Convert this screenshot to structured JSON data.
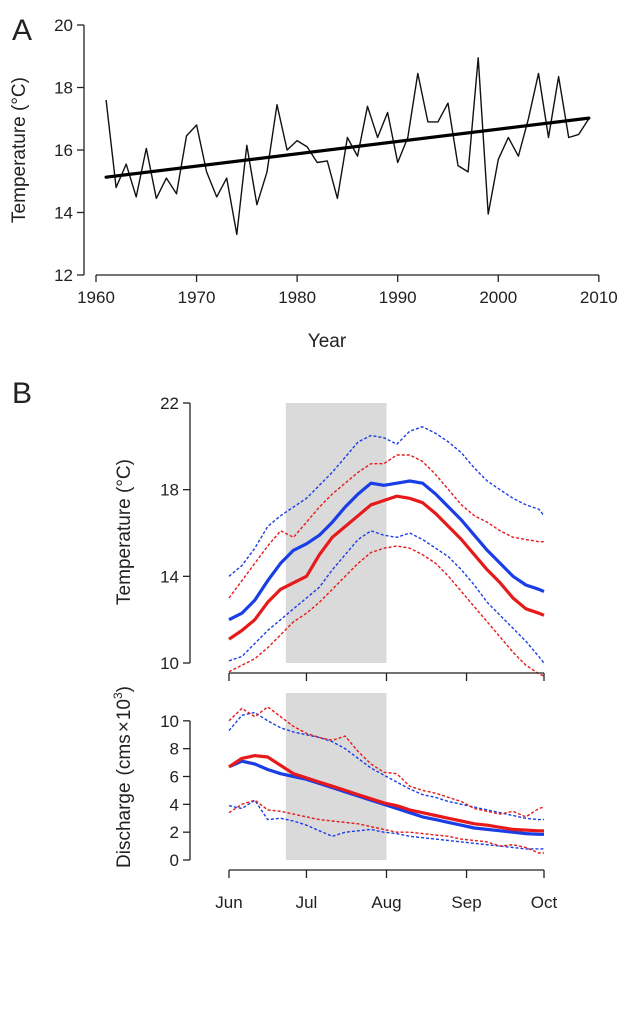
{
  "chart_data": [
    {
      "panel": "A",
      "type": "line",
      "xlabel": "Year",
      "ylabel": "Temperature (°C)",
      "xlim": [
        1960,
        2013
      ],
      "ylim": [
        12,
        20
      ],
      "xticks": [
        1960,
        1970,
        1980,
        1990,
        2000,
        2010
      ],
      "yticks": [
        12,
        14,
        16,
        18,
        20
      ],
      "grid": false,
      "series": [
        {
          "style": "thin black line",
          "color": "#111111",
          "x": [
            1961,
            1962,
            1963,
            1964,
            1965,
            1966,
            1967,
            1968,
            1969,
            1970,
            1971,
            1972,
            1973,
            1974,
            1975,
            1976,
            1977,
            1978,
            1979,
            1980,
            1981,
            1982,
            1983,
            1984,
            1985,
            1986,
            1987,
            1988,
            1989,
            1990,
            1991,
            1992,
            1993,
            1994,
            1995,
            1996,
            1997,
            1998,
            1999,
            2000,
            2001,
            2002,
            2003,
            2004,
            2005,
            2006,
            2007,
            2008,
            2009
          ],
          "y": [
            17.6,
            14.8,
            15.55,
            14.5,
            16.05,
            14.45,
            15.1,
            14.6,
            16.45,
            16.8,
            15.3,
            14.5,
            15.1,
            13.3,
            16.15,
            14.25,
            15.3,
            17.45,
            16.0,
            16.3,
            16.1,
            15.6,
            15.65,
            14.45,
            16.4,
            15.8,
            17.4,
            16.4,
            17.2,
            15.6,
            16.4,
            18.45,
            16.9,
            16.9,
            17.5,
            15.5,
            15.3,
            18.95,
            13.95,
            15.7,
            16.4,
            15.8,
            17.0,
            18.45,
            16.4,
            18.35,
            16.4,
            16.5,
            17.0
          ]
        },
        {
          "style": "thick black trend line",
          "color": "#000000",
          "x": [
            1961,
            2009
          ],
          "y": [
            15.13,
            17.02
          ]
        }
      ]
    },
    {
      "panel": "B-upper",
      "type": "line",
      "xlabel": "",
      "ylabel": "Temperature (°C)",
      "ylim": [
        10,
        22
      ],
      "yticks": [
        10,
        14,
        18,
        22
      ],
      "x_days": [
        0,
        30,
        61,
        92,
        122
      ],
      "shaded_region": [
        22,
        61
      ],
      "shaded_color": "#d3d3d3",
      "grid": false,
      "series": [
        {
          "color": "#1a3ee6",
          "style": "solid",
          "x": [
            0,
            5,
            10,
            15,
            20,
            25,
            30,
            35,
            40,
            45,
            50,
            55,
            60,
            65,
            70,
            75,
            80,
            85,
            90,
            95,
            100,
            105,
            110,
            115,
            120,
            122
          ],
          "y": [
            12.0,
            12.3,
            12.9,
            13.8,
            14.6,
            15.2,
            15.5,
            15.9,
            16.5,
            17.2,
            17.8,
            18.3,
            18.2,
            18.3,
            18.4,
            18.3,
            17.8,
            17.2,
            16.6,
            15.9,
            15.2,
            14.6,
            14.0,
            13.6,
            13.4,
            13.3
          ]
        },
        {
          "color": "#e61a1a",
          "style": "solid",
          "x": [
            0,
            5,
            10,
            15,
            20,
            25,
            30,
            35,
            40,
            45,
            50,
            55,
            60,
            65,
            70,
            75,
            80,
            85,
            90,
            95,
            100,
            105,
            110,
            115,
            120,
            122
          ],
          "y": [
            11.1,
            11.5,
            12.0,
            12.8,
            13.4,
            13.7,
            14.0,
            15.0,
            15.8,
            16.3,
            16.8,
            17.3,
            17.5,
            17.7,
            17.6,
            17.4,
            16.9,
            16.3,
            15.7,
            15.0,
            14.3,
            13.7,
            13.0,
            12.5,
            12.3,
            12.2
          ]
        },
        {
          "color": "#1a3ee6",
          "style": "dotted",
          "x": [
            0,
            5,
            10,
            15,
            20,
            25,
            30,
            35,
            40,
            45,
            50,
            55,
            60,
            65,
            70,
            75,
            80,
            85,
            90,
            95,
            100,
            105,
            110,
            115,
            120,
            122
          ],
          "y": [
            14.0,
            14.5,
            15.3,
            16.3,
            16.8,
            17.2,
            17.6,
            18.2,
            18.8,
            19.5,
            20.2,
            20.5,
            20.4,
            20.1,
            20.7,
            20.9,
            20.6,
            20.2,
            19.7,
            19.0,
            18.4,
            18.0,
            17.6,
            17.3,
            17.1,
            16.8
          ]
        },
        {
          "color": "#1a3ee6",
          "style": "dotted",
          "x": [
            0,
            5,
            10,
            15,
            20,
            25,
            30,
            35,
            40,
            45,
            50,
            55,
            60,
            65,
            70,
            75,
            80,
            85,
            90,
            95,
            100,
            105,
            110,
            115,
            120,
            122
          ],
          "y": [
            10.1,
            10.3,
            10.9,
            11.5,
            12.0,
            12.5,
            13.0,
            13.5,
            14.3,
            15.0,
            15.7,
            16.1,
            15.9,
            15.8,
            16.0,
            15.7,
            15.3,
            14.9,
            14.3,
            13.6,
            12.8,
            12.2,
            11.6,
            11.0,
            10.3,
            10.0
          ]
        },
        {
          "color": "#e61a1a",
          "style": "dotted",
          "x": [
            0,
            5,
            10,
            15,
            20,
            25,
            30,
            35,
            40,
            45,
            50,
            55,
            60,
            65,
            70,
            75,
            80,
            85,
            90,
            95,
            100,
            105,
            110,
            115,
            120,
            122
          ],
          "y": [
            13.0,
            13.8,
            14.6,
            15.4,
            16.1,
            15.8,
            16.5,
            17.2,
            17.8,
            18.3,
            18.8,
            19.2,
            19.2,
            19.6,
            19.6,
            19.3,
            18.7,
            18.0,
            17.3,
            16.8,
            16.5,
            16.1,
            15.8,
            15.7,
            15.6,
            15.6
          ]
        },
        {
          "color": "#e61a1a",
          "style": "dotted",
          "x": [
            0,
            5,
            10,
            15,
            20,
            25,
            30,
            35,
            40,
            45,
            50,
            55,
            60,
            65,
            70,
            75,
            80,
            85,
            90,
            95,
            100,
            105,
            110,
            115,
            120,
            122
          ],
          "y": [
            9.6,
            9.9,
            10.2,
            10.7,
            11.3,
            11.9,
            12.3,
            12.8,
            13.4,
            14.0,
            14.6,
            15.1,
            15.3,
            15.4,
            15.3,
            15.0,
            14.6,
            14.0,
            13.3,
            12.6,
            11.9,
            11.2,
            10.5,
            9.9,
            9.5,
            9.4
          ]
        }
      ]
    },
    {
      "panel": "B-lower",
      "type": "line",
      "xlabel": "",
      "ylabel": "Discharge",
      "ylabel_unit": "cms",
      "ylabel_exp": "3",
      "ylim": [
        0,
        12
      ],
      "yticks": [
        0,
        2,
        4,
        6,
        8,
        10
      ],
      "x_days": [
        0,
        30,
        61,
        92,
        122
      ],
      "xtick_labels": [
        "Jun",
        "Jul",
        "Aug",
        "Sep",
        "Oct"
      ],
      "shaded_region": [
        22,
        61
      ],
      "shaded_color": "#d3d3d3",
      "grid": false,
      "series": [
        {
          "color": "#1a3ee6",
          "style": "solid",
          "x": [
            0,
            5,
            10,
            15,
            20,
            25,
            30,
            35,
            40,
            45,
            50,
            55,
            60,
            65,
            70,
            75,
            80,
            85,
            90,
            95,
            100,
            105,
            110,
            115,
            120,
            122
          ],
          "y": [
            6.7,
            7.1,
            6.9,
            6.5,
            6.2,
            6.0,
            5.8,
            5.5,
            5.2,
            4.9,
            4.6,
            4.3,
            4.0,
            3.7,
            3.4,
            3.1,
            2.9,
            2.7,
            2.5,
            2.3,
            2.2,
            2.1,
            2.0,
            1.9,
            1.85,
            1.85
          ]
        },
        {
          "color": "#e61a1a",
          "style": "solid",
          "x": [
            0,
            5,
            10,
            15,
            20,
            25,
            30,
            35,
            40,
            45,
            50,
            55,
            60,
            65,
            70,
            75,
            80,
            85,
            90,
            95,
            100,
            105,
            110,
            115,
            120,
            122
          ],
          "y": [
            6.7,
            7.3,
            7.5,
            7.4,
            6.8,
            6.2,
            5.9,
            5.6,
            5.3,
            5.0,
            4.7,
            4.4,
            4.1,
            3.9,
            3.6,
            3.4,
            3.2,
            3.0,
            2.8,
            2.6,
            2.5,
            2.35,
            2.2,
            2.15,
            2.1,
            2.1
          ]
        },
        {
          "color": "#1a3ee6",
          "style": "dotted",
          "x": [
            0,
            5,
            10,
            15,
            20,
            25,
            30,
            35,
            40,
            45,
            50,
            55,
            60,
            65,
            70,
            75,
            80,
            85,
            90,
            95,
            100,
            105,
            110,
            115,
            120,
            122
          ],
          "y": [
            9.3,
            10.4,
            10.6,
            10.0,
            9.5,
            9.2,
            9.0,
            8.8,
            8.5,
            8.0,
            7.3,
            6.6,
            6.1,
            5.6,
            5.1,
            4.7,
            4.5,
            4.2,
            4.0,
            3.8,
            3.6,
            3.4,
            3.2,
            3.0,
            2.9,
            2.9
          ]
        },
        {
          "color": "#e61a1a",
          "style": "dotted",
          "x": [
            0,
            5,
            10,
            15,
            20,
            25,
            30,
            35,
            40,
            45,
            50,
            55,
            60,
            65,
            70,
            75,
            80,
            85,
            90,
            95,
            100,
            105,
            110,
            115,
            120,
            122
          ],
          "y": [
            10.0,
            10.9,
            10.3,
            11.0,
            10.3,
            9.6,
            9.1,
            8.8,
            8.6,
            8.9,
            7.8,
            6.9,
            6.3,
            6.2,
            5.3,
            5.0,
            4.8,
            4.5,
            4.2,
            3.7,
            3.5,
            3.3,
            3.5,
            3.1,
            3.7,
            3.8
          ]
        },
        {
          "color": "#1a3ee6",
          "style": "dotted",
          "x": [
            0,
            5,
            10,
            15,
            20,
            25,
            30,
            35,
            40,
            45,
            50,
            55,
            60,
            65,
            70,
            75,
            80,
            85,
            90,
            95,
            100,
            105,
            110,
            115,
            120,
            122
          ],
          "y": [
            3.9,
            3.7,
            4.3,
            2.9,
            3.0,
            2.8,
            2.5,
            2.1,
            1.7,
            2.0,
            2.1,
            2.2,
            2.0,
            1.9,
            1.7,
            1.6,
            1.5,
            1.4,
            1.3,
            1.2,
            1.1,
            1.0,
            0.9,
            0.8,
            0.8,
            0.8
          ]
        },
        {
          "color": "#e61a1a",
          "style": "dotted",
          "x": [
            0,
            5,
            10,
            15,
            20,
            25,
            30,
            35,
            40,
            45,
            50,
            55,
            60,
            65,
            70,
            75,
            80,
            85,
            90,
            95,
            100,
            105,
            110,
            115,
            120,
            122
          ],
          "y": [
            3.4,
            4.0,
            4.3,
            3.6,
            3.5,
            3.3,
            3.1,
            2.9,
            2.8,
            2.7,
            2.6,
            2.4,
            2.2,
            2.0,
            2.0,
            1.9,
            1.8,
            1.7,
            1.5,
            1.4,
            1.3,
            1.0,
            1.1,
            0.9,
            0.5,
            0.5
          ]
        }
      ]
    }
  ],
  "labels": {
    "panel_a": "A",
    "panel_b": "B"
  }
}
